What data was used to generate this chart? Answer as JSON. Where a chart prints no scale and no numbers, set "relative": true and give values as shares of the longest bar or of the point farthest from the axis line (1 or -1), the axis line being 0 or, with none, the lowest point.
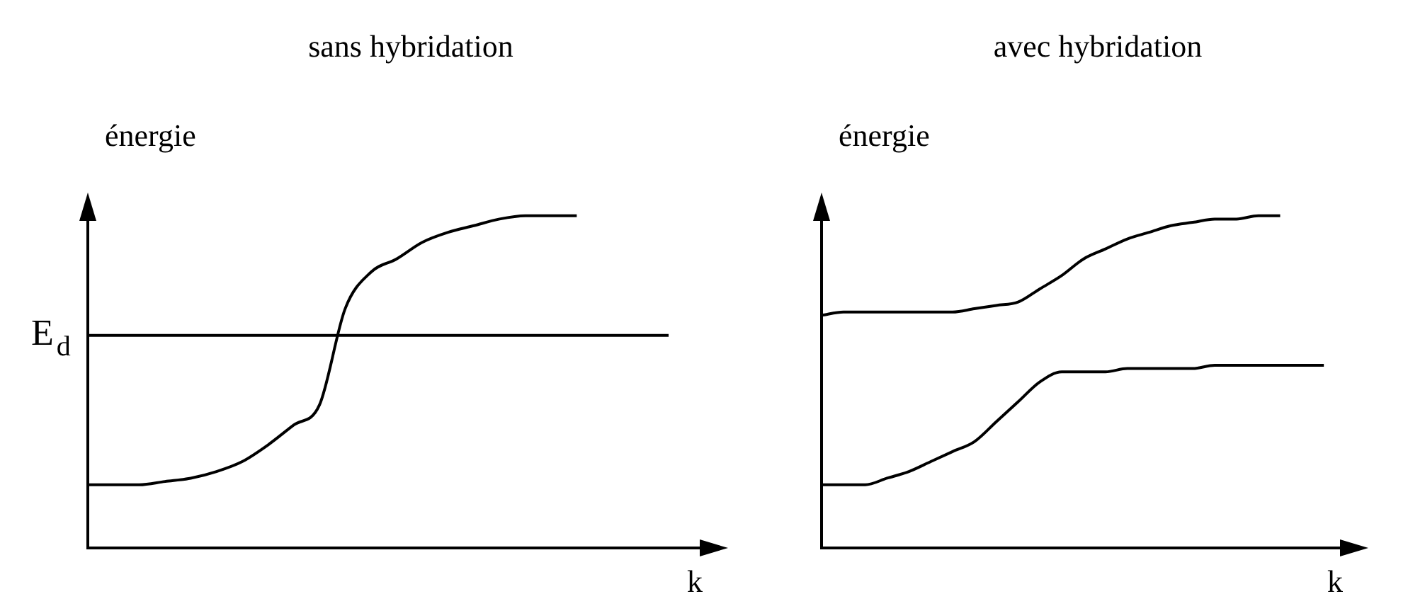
{
  "chart_data": [
    {
      "type": "line",
      "title": "sans hybridation",
      "xlabel": "k",
      "ylabel": "énergie",
      "relative": true,
      "legend": false,
      "grid": false,
      "tick_labels": false,
      "marker": "none",
      "line_style": "solid",
      "categories": [
        null,
        null,
        null,
        null,
        null,
        null,
        null,
        null,
        null,
        null,
        null,
        null,
        null,
        null,
        null,
        null,
        null,
        null,
        null,
        null,
        null,
        null,
        null,
        null,
        null
      ],
      "series": [
        {
          "color": "#000000",
          "values": [
            0.19,
            0.19,
            0.19,
            0.2,
            0.21,
            0.23,
            0.26,
            0.31,
            0.37,
            0.43,
            0.72,
            0.83,
            0.87,
            0.92,
            0.95,
            0.97,
            0.99,
            1.0,
            1.0,
            1.0,
            null,
            null,
            null,
            null,
            null
          ]
        }
      ],
      "ref_lines": [
        {
          "axis": "y",
          "value": 0.64,
          "label": "E$_{d}$",
          "color": "#000000"
        }
      ]
    },
    {
      "type": "line",
      "title": "avec hybridation",
      "xlabel": "k",
      "ylabel": "énergie",
      "relative": true,
      "legend": false,
      "grid": false,
      "tick_labels": false,
      "marker": "none",
      "line_style": "solid",
      "categories": [
        null,
        null,
        null,
        null,
        null,
        null,
        null,
        null,
        null,
        null,
        null,
        null,
        null,
        null,
        null,
        null,
        null,
        null,
        null,
        null,
        null,
        null,
        null,
        null,
        null
      ],
      "series": [
        {
          "color": "#000000",
          "values": [
            0.7,
            0.71,
            0.71,
            0.71,
            0.71,
            0.71,
            0.71,
            0.72,
            0.73,
            0.74,
            0.78,
            0.82,
            0.87,
            0.9,
            0.93,
            0.95,
            0.97,
            0.98,
            0.99,
            0.99,
            1.0,
            1.0,
            null,
            null,
            null
          ]
        },
        {
          "color": "#000000",
          "values": [
            0.19,
            0.19,
            0.19,
            0.21,
            0.23,
            0.26,
            0.29,
            0.32,
            0.38,
            0.44,
            0.5,
            0.53,
            0.53,
            0.53,
            0.54,
            0.54,
            0.54,
            0.54,
            0.55,
            0.55,
            0.55,
            0.55,
            0.55,
            0.55,
            null
          ]
        }
      ]
    }
  ]
}
